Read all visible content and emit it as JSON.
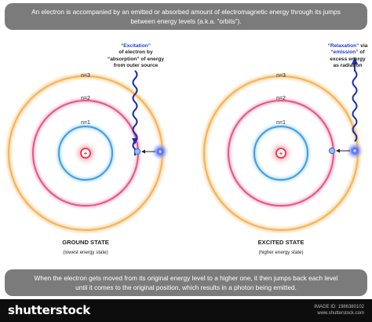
{
  "header": {
    "line1": "An electron is accompanied by an emitted or absorbed amount of electromagnetic energy through its jumps",
    "line2": "between energy levels (a.k.a. “orbits”)."
  },
  "levels": [
    "n=3",
    "n=2",
    "n=1"
  ],
  "nucleus_symbol": "+",
  "left": {
    "title": "GROUND STATE",
    "subtitle": "(lowest energy state)",
    "note": {
      "l1": "“Excitation”",
      "l2": "of electron by",
      "l3": "“absorption” of energy",
      "l4": "from outer source"
    }
  },
  "right": {
    "title": "EXCITED STATE",
    "subtitle": "(higher energy state)",
    "note": {
      "l1a": "“Relaxation”",
      "l1b": " via",
      "l2a": "“emission”",
      "l2b": " of",
      "l3": "excess energy",
      "l4": "as radiation"
    }
  },
  "footer_banner": {
    "line1": "When the electron gets moved from its original energy level to a higher one, it then jumps back each level",
    "line2": "until it comes to the original position, which results in a photon being emitted."
  },
  "watermark": {
    "logo": "shutterstock",
    "image_id": "IMAGE ID: 1986380102",
    "site": "www.shutterstock.com"
  },
  "colors": {
    "n3": "#f6c47a",
    "n2": "#f07aa0",
    "n1": "#5fb6ea",
    "nucleus": "#e8334a",
    "photon": "#2b52f0",
    "wave": "#1a2fb0",
    "electron": "#6fa8e8"
  }
}
